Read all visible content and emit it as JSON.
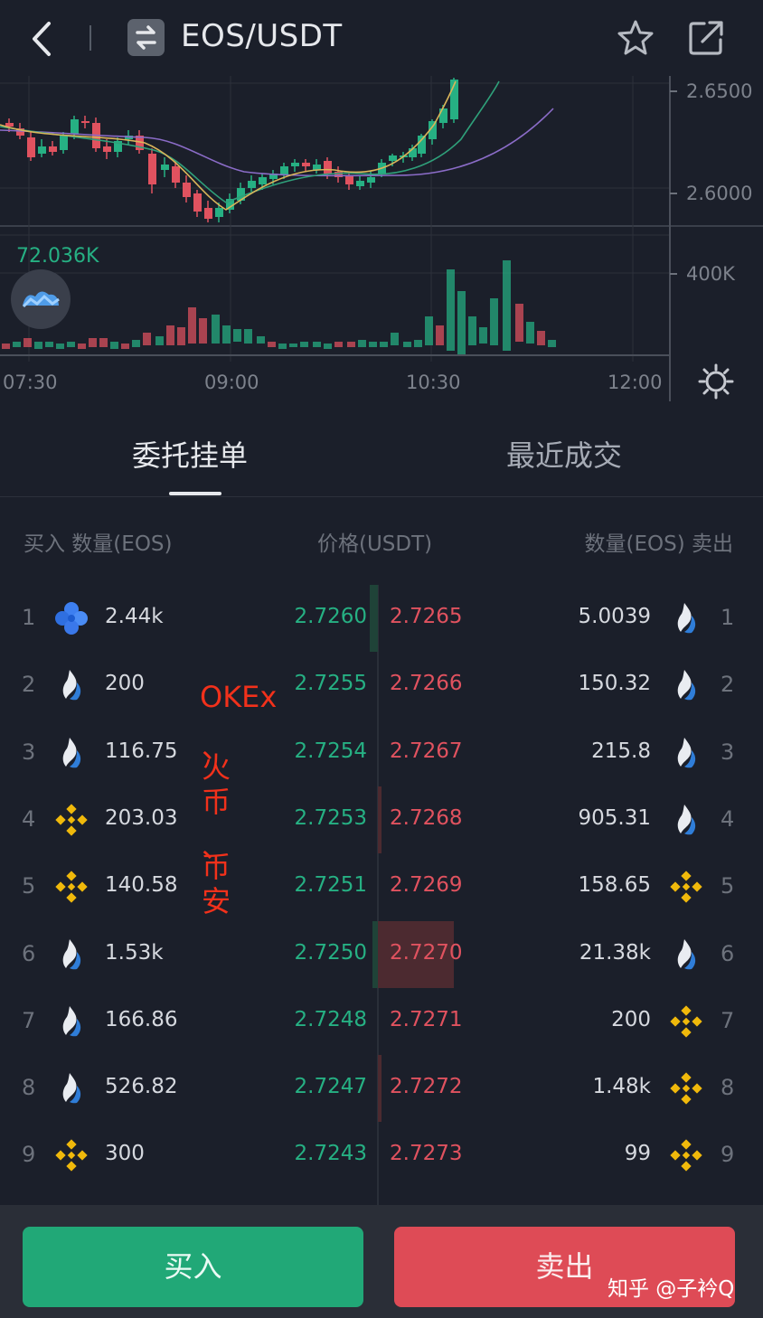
{
  "header": {
    "pair": "EOS/USDT"
  },
  "chart": {
    "price_ticks": [
      "2.6500",
      "2.6000"
    ],
    "volume_tick": "400K",
    "volume_value": "72.036K",
    "time_ticks": [
      "07:30",
      "09:00",
      "10:30",
      "12:00"
    ]
  },
  "tabs": {
    "orders": "委托挂单",
    "trades": "最近成交"
  },
  "columns": {
    "buy": "买入 数量(EOS)",
    "price": "价格(USDT)",
    "sell": "数量(EOS) 卖出"
  },
  "rows": [
    {
      "idx": "1",
      "bid_ex": "okex-icon",
      "bid_qty": "2.44k",
      "bid": "2.7260",
      "ask": "2.7265",
      "ask_qty": "5.0039",
      "ask_ex": "huobi-icon",
      "bid_depth": 0.08,
      "ask_depth": 0
    },
    {
      "idx": "2",
      "bid_ex": "huobi-icon",
      "bid_qty": "200",
      "bid": "2.7255",
      "ask": "2.7266",
      "ask_qty": "150.32",
      "ask_ex": "huobi-icon",
      "bid_depth": 0,
      "ask_depth": 0
    },
    {
      "idx": "3",
      "bid_ex": "huobi-icon",
      "bid_qty": "116.75",
      "bid": "2.7254",
      "ask": "2.7267",
      "ask_qty": "215.8",
      "ask_ex": "huobi-icon",
      "bid_depth": 0,
      "ask_depth": 0
    },
    {
      "idx": "4",
      "bid_ex": "binance-icon",
      "bid_qty": "203.03",
      "bid": "2.7253",
      "ask": "2.7268",
      "ask_qty": "905.31",
      "ask_ex": "huobi-icon",
      "bid_depth": 0,
      "ask_depth": 0.04
    },
    {
      "idx": "5",
      "bid_ex": "binance-icon",
      "bid_qty": "140.58",
      "bid": "2.7251",
      "ask": "2.7269",
      "ask_qty": "158.65",
      "ask_ex": "binance-icon",
      "bid_depth": 0,
      "ask_depth": 0
    },
    {
      "idx": "6",
      "bid_ex": "huobi-icon",
      "bid_qty": "1.53k",
      "bid": "2.7250",
      "ask": "2.7270",
      "ask_qty": "21.38k",
      "ask_ex": "huobi-icon",
      "bid_depth": 0.05,
      "ask_depth": 1.0
    },
    {
      "idx": "7",
      "bid_ex": "huobi-icon",
      "bid_qty": "166.86",
      "bid": "2.7248",
      "ask": "2.7271",
      "ask_qty": "200",
      "ask_ex": "binance-icon",
      "bid_depth": 0,
      "ask_depth": 0
    },
    {
      "idx": "8",
      "bid_ex": "huobi-icon",
      "bid_qty": "526.82",
      "bid": "2.7247",
      "ask": "2.7272",
      "ask_qty": "1.48k",
      "ask_ex": "binance-icon",
      "bid_depth": 0,
      "ask_depth": 0.05
    },
    {
      "idx": "9",
      "bid_ex": "binance-icon",
      "bid_qty": "300",
      "bid": "2.7243",
      "ask": "2.7273",
      "ask_qty": "99",
      "ask_ex": "binance-icon",
      "bid_depth": 0,
      "ask_depth": 0
    }
  ],
  "annotation": {
    "okex": "OKEx",
    "lines": [
      "、",
      "火",
      "币",
      "、",
      "币",
      "安"
    ]
  },
  "actions": {
    "buy": "买入",
    "sell": "卖出"
  },
  "watermark": "知乎 @子衿Q",
  "colors": {
    "up": "#26b083",
    "down": "#e0525f",
    "background": "#1b1f2a"
  }
}
